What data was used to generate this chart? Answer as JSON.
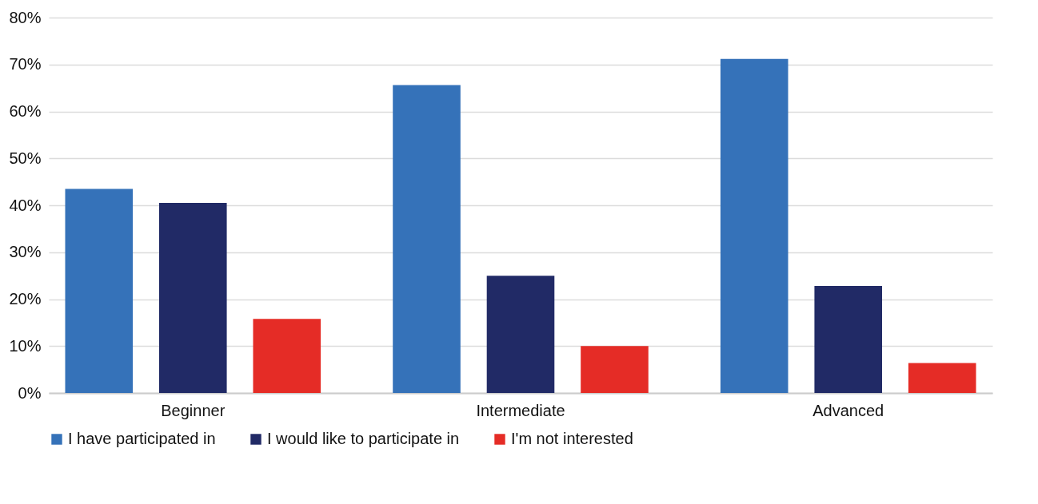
{
  "chart_data": {
    "type": "bar",
    "categories": [
      "Beginner",
      "Intermediate",
      "Advanced"
    ],
    "series": [
      {
        "name": "I have participated in",
        "color": "#3572b9",
        "values": [
          43.5,
          65.6,
          71.2
        ]
      },
      {
        "name": "I would like to participate in",
        "color": "#212a66",
        "values": [
          40.5,
          25.0,
          22.8
        ]
      },
      {
        "name": "I'm not interested",
        "color": "#e52c26",
        "values": [
          15.8,
          10.0,
          6.4
        ]
      }
    ],
    "ylim": [
      0,
      80
    ],
    "yticks": [
      {
        "value": 0,
        "label": "0%"
      },
      {
        "value": 10,
        "label": "10%"
      },
      {
        "value": 20,
        "label": "20%"
      },
      {
        "value": 30,
        "label": "30%"
      },
      {
        "value": 40,
        "label": "40%"
      },
      {
        "value": 50,
        "label": "50%"
      },
      {
        "value": 60,
        "label": "60%"
      },
      {
        "value": 70,
        "label": "70%"
      },
      {
        "value": 80,
        "label": "80%"
      }
    ],
    "grid": "y",
    "legend": "bottom"
  }
}
